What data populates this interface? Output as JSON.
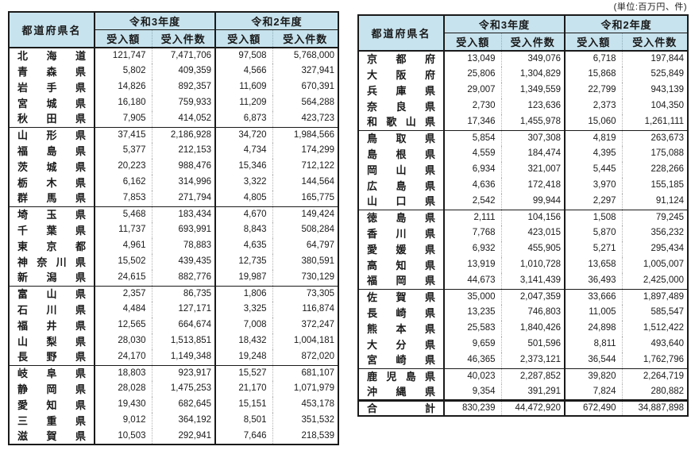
{
  "unit_label": "(単位:百万円、件)",
  "header": {
    "prefecture": "都道府県名",
    "year_r3": "令和3年度",
    "year_r2": "令和2年度",
    "amount": "受入額",
    "count": "受入件数"
  },
  "left_table": {
    "rows": [
      {
        "name": "北海道",
        "r3_amount": "121,747",
        "r3_count": "7,471,706",
        "r2_amount": "97,508",
        "r2_count": "5,768,000",
        "group_start": true
      },
      {
        "name": "青森県",
        "r3_amount": "5,802",
        "r3_count": "409,359",
        "r2_amount": "4,566",
        "r2_count": "327,941"
      },
      {
        "name": "岩手県",
        "r3_amount": "14,826",
        "r3_count": "892,357",
        "r2_amount": "11,609",
        "r2_count": "670,391"
      },
      {
        "name": "宮城県",
        "r3_amount": "16,180",
        "r3_count": "759,933",
        "r2_amount": "11,209",
        "r2_count": "564,288"
      },
      {
        "name": "秋田県",
        "r3_amount": "7,905",
        "r3_count": "414,052",
        "r2_amount": "6,873",
        "r2_count": "423,723"
      },
      {
        "name": "山形県",
        "r3_amount": "37,415",
        "r3_count": "2,186,928",
        "r2_amount": "34,720",
        "r2_count": "1,984,566",
        "group_start": true
      },
      {
        "name": "福島県",
        "r3_amount": "5,377",
        "r3_count": "212,153",
        "r2_amount": "4,734",
        "r2_count": "174,299"
      },
      {
        "name": "茨城県",
        "r3_amount": "20,223",
        "r3_count": "988,476",
        "r2_amount": "15,346",
        "r2_count": "712,122"
      },
      {
        "name": "栃木県",
        "r3_amount": "6,162",
        "r3_count": "314,996",
        "r2_amount": "3,322",
        "r2_count": "144,564"
      },
      {
        "name": "群馬県",
        "r3_amount": "7,853",
        "r3_count": "271,794",
        "r2_amount": "4,805",
        "r2_count": "165,775"
      },
      {
        "name": "埼玉県",
        "r3_amount": "5,468",
        "r3_count": "183,434",
        "r2_amount": "4,670",
        "r2_count": "149,424",
        "group_start": true
      },
      {
        "name": "千葉県",
        "r3_amount": "11,737",
        "r3_count": "693,991",
        "r2_amount": "8,843",
        "r2_count": "508,284"
      },
      {
        "name": "東京都",
        "r3_amount": "4,961",
        "r3_count": "78,883",
        "r2_amount": "4,635",
        "r2_count": "64,797"
      },
      {
        "name": "神奈川県",
        "r3_amount": "15,502",
        "r3_count": "439,435",
        "r2_amount": "12,735",
        "r2_count": "380,591"
      },
      {
        "name": "新潟県",
        "r3_amount": "24,615",
        "r3_count": "882,776",
        "r2_amount": "19,987",
        "r2_count": "730,129"
      },
      {
        "name": "富山県",
        "r3_amount": "2,357",
        "r3_count": "86,735",
        "r2_amount": "1,806",
        "r2_count": "73,305",
        "group_start": true
      },
      {
        "name": "石川県",
        "r3_amount": "4,484",
        "r3_count": "127,171",
        "r2_amount": "3,325",
        "r2_count": "116,874"
      },
      {
        "name": "福井県",
        "r3_amount": "12,565",
        "r3_count": "664,674",
        "r2_amount": "7,008",
        "r2_count": "372,247"
      },
      {
        "name": "山梨県",
        "r3_amount": "28,030",
        "r3_count": "1,513,851",
        "r2_amount": "18,432",
        "r2_count": "1,004,181"
      },
      {
        "name": "長野県",
        "r3_amount": "24,170",
        "r3_count": "1,149,348",
        "r2_amount": "19,248",
        "r2_count": "872,020"
      },
      {
        "name": "岐阜県",
        "r3_amount": "18,803",
        "r3_count": "923,917",
        "r2_amount": "15,527",
        "r2_count": "681,107",
        "group_start": true
      },
      {
        "name": "静岡県",
        "r3_amount": "28,028",
        "r3_count": "1,475,253",
        "r2_amount": "21,170",
        "r2_count": "1,071,979"
      },
      {
        "name": "愛知県",
        "r3_amount": "19,430",
        "r3_count": "682,645",
        "r2_amount": "15,151",
        "r2_count": "453,178"
      },
      {
        "name": "三重県",
        "r3_amount": "9,012",
        "r3_count": "364,192",
        "r2_amount": "8,501",
        "r2_count": "351,532"
      },
      {
        "name": "滋賀県",
        "r3_amount": "10,503",
        "r3_count": "292,941",
        "r2_amount": "7,646",
        "r2_count": "218,539"
      }
    ]
  },
  "right_table": {
    "rows": [
      {
        "name": "京都府",
        "r3_amount": "13,049",
        "r3_count": "349,076",
        "r2_amount": "6,718",
        "r2_count": "197,844",
        "group_start": true
      },
      {
        "name": "大阪府",
        "r3_amount": "25,806",
        "r3_count": "1,304,829",
        "r2_amount": "15,868",
        "r2_count": "525,849"
      },
      {
        "name": "兵庫県",
        "r3_amount": "29,007",
        "r3_count": "1,349,559",
        "r2_amount": "22,799",
        "r2_count": "943,139"
      },
      {
        "name": "奈良県",
        "r3_amount": "2,730",
        "r3_count": "123,636",
        "r2_amount": "2,373",
        "r2_count": "104,350"
      },
      {
        "name": "和歌山県",
        "r3_amount": "17,346",
        "r3_count": "1,455,978",
        "r2_amount": "15,060",
        "r2_count": "1,261,111"
      },
      {
        "name": "鳥取県",
        "r3_amount": "5,854",
        "r3_count": "307,308",
        "r2_amount": "4,819",
        "r2_count": "263,673",
        "group_start": true
      },
      {
        "name": "島根県",
        "r3_amount": "4,559",
        "r3_count": "184,474",
        "r2_amount": "4,395",
        "r2_count": "175,088"
      },
      {
        "name": "岡山県",
        "r3_amount": "6,934",
        "r3_count": "321,007",
        "r2_amount": "5,445",
        "r2_count": "228,266"
      },
      {
        "name": "広島県",
        "r3_amount": "4,636",
        "r3_count": "172,418",
        "r2_amount": "3,970",
        "r2_count": "155,185"
      },
      {
        "name": "山口県",
        "r3_amount": "2,542",
        "r3_count": "99,944",
        "r2_amount": "2,297",
        "r2_count": "91,124"
      },
      {
        "name": "徳島県",
        "r3_amount": "2,111",
        "r3_count": "104,156",
        "r2_amount": "1,508",
        "r2_count": "79,245",
        "group_start": true
      },
      {
        "name": "香川県",
        "r3_amount": "7,768",
        "r3_count": "423,015",
        "r2_amount": "5,870",
        "r2_count": "356,232"
      },
      {
        "name": "愛媛県",
        "r3_amount": "6,932",
        "r3_count": "455,905",
        "r2_amount": "5,271",
        "r2_count": "295,434"
      },
      {
        "name": "高知県",
        "r3_amount": "13,919",
        "r3_count": "1,010,728",
        "r2_amount": "13,658",
        "r2_count": "1,005,007"
      },
      {
        "name": "福岡県",
        "r3_amount": "44,673",
        "r3_count": "3,141,439",
        "r2_amount": "36,493",
        "r2_count": "2,425,000"
      },
      {
        "name": "佐賀県",
        "r3_amount": "35,000",
        "r3_count": "2,047,359",
        "r2_amount": "33,666",
        "r2_count": "1,897,489",
        "group_start": true
      },
      {
        "name": "長崎県",
        "r3_amount": "13,235",
        "r3_count": "746,803",
        "r2_amount": "11,005",
        "r2_count": "585,547"
      },
      {
        "name": "熊本県",
        "r3_amount": "25,583",
        "r3_count": "1,840,426",
        "r2_amount": "24,898",
        "r2_count": "1,512,422"
      },
      {
        "name": "大分県",
        "r3_amount": "9,659",
        "r3_count": "501,596",
        "r2_amount": "8,811",
        "r2_count": "493,640"
      },
      {
        "name": "宮崎県",
        "r3_amount": "46,365",
        "r3_count": "2,373,121",
        "r2_amount": "36,544",
        "r2_count": "1,762,796"
      },
      {
        "name": "鹿児島県",
        "r3_amount": "40,023",
        "r3_count": "2,287,852",
        "r2_amount": "39,820",
        "r2_count": "2,264,719",
        "group_start": true
      },
      {
        "name": "沖縄県",
        "r3_amount": "9,354",
        "r3_count": "391,291",
        "r2_amount": "7,824",
        "r2_count": "280,882"
      },
      {
        "name": "合計",
        "r3_amount": "830,239",
        "r3_count": "44,472,920",
        "r2_amount": "672,490",
        "r2_count": "34,887,898",
        "total": true
      }
    ]
  },
  "colors": {
    "header_bg": "#c7e3ee",
    "border": "#1a1a1a",
    "page_bg": "#ffffff"
  }
}
